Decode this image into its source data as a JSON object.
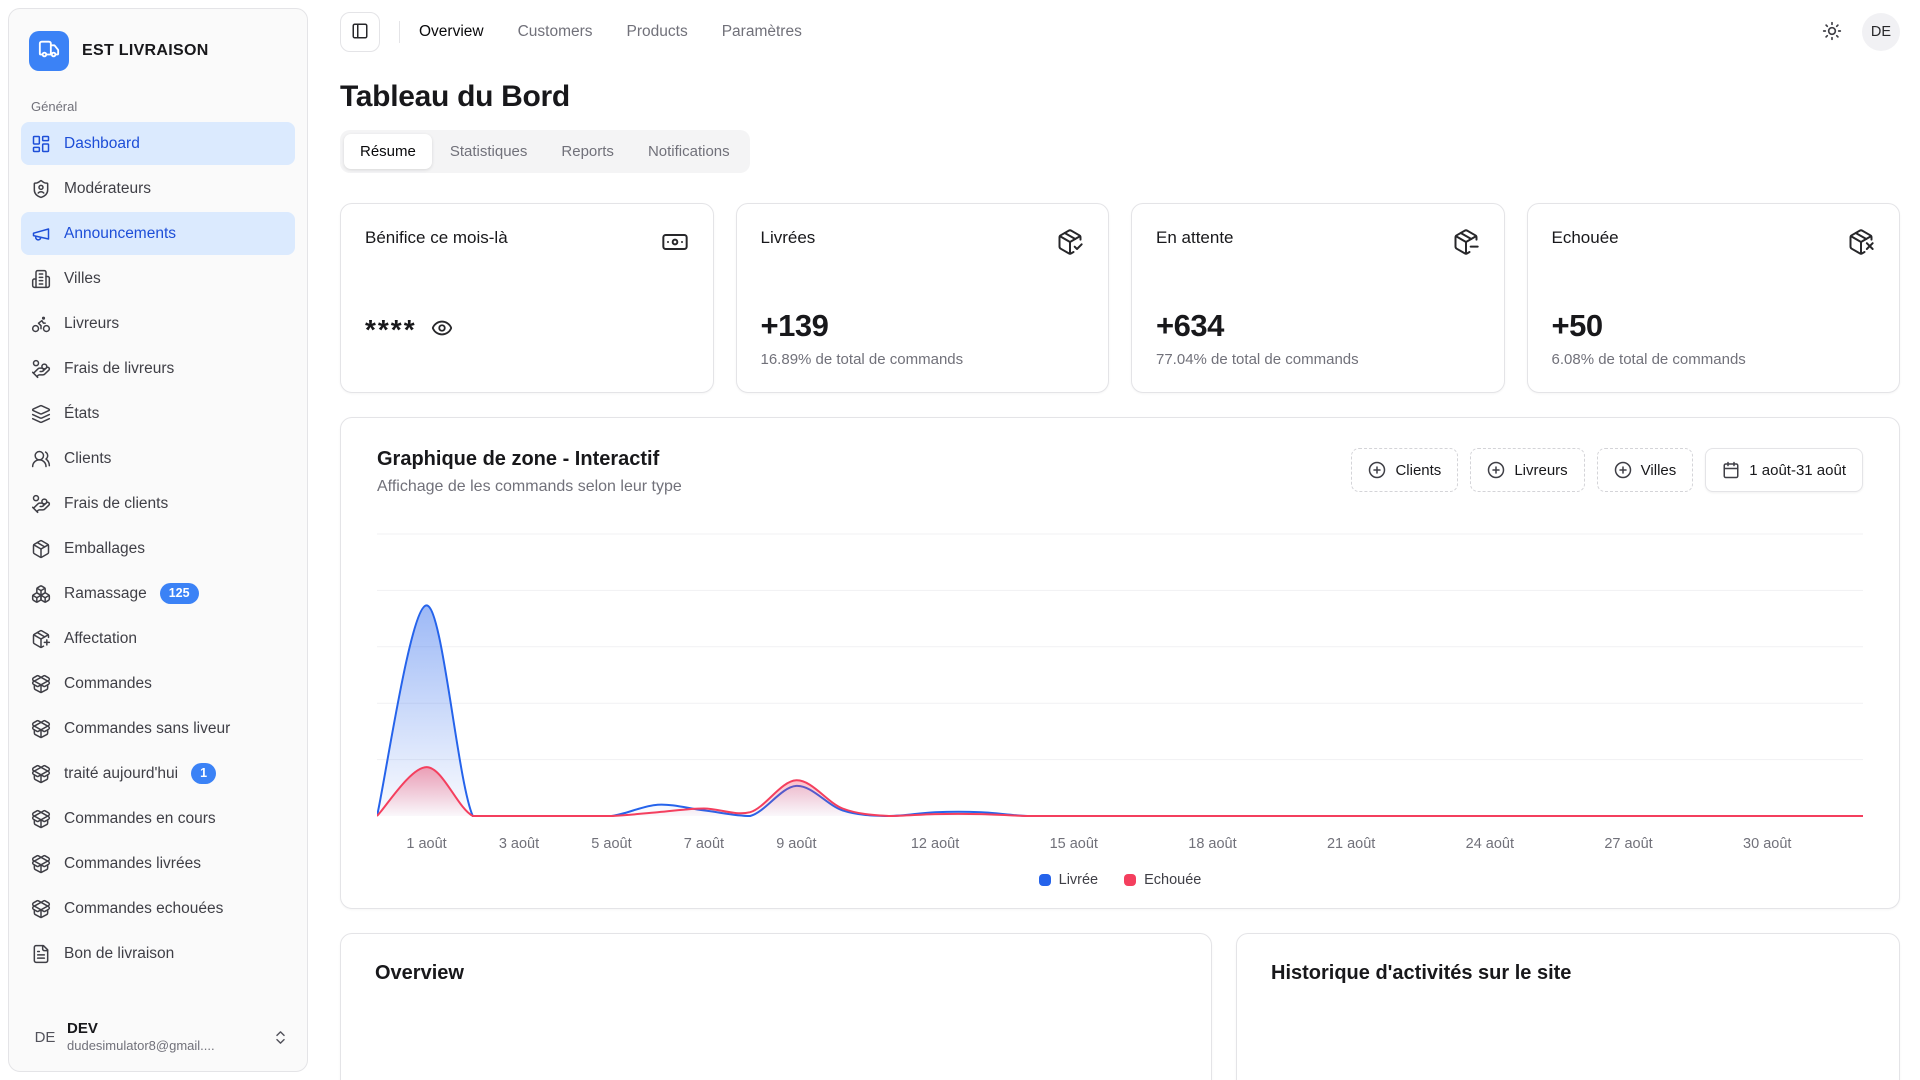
{
  "app": {
    "name": "EST LIVRAISON",
    "logo_icon": "truck"
  },
  "topbar": {
    "nav": [
      {
        "name": "overview",
        "label": "Overview",
        "active": true
      },
      {
        "name": "customers",
        "label": "Customers",
        "active": false
      },
      {
        "name": "products",
        "label": "Products",
        "active": false
      },
      {
        "name": "parametres",
        "label": "Paramètres",
        "active": false
      }
    ],
    "avatar_initials": "DE"
  },
  "page": {
    "title": "Tableau du Bord"
  },
  "tabs": [
    {
      "name": "resume",
      "label": "Résume",
      "active": true
    },
    {
      "name": "statistiques",
      "label": "Statistiques",
      "active": false
    },
    {
      "name": "reports",
      "label": "Reports",
      "active": false
    },
    {
      "name": "notifications",
      "label": "Notifications",
      "active": false
    }
  ],
  "sidebar": {
    "section_label": "Général",
    "items": [
      {
        "name": "dashboard",
        "label": "Dashboard",
        "icon": "layout-dashboard",
        "active": true,
        "badge": null
      },
      {
        "name": "moderateurs",
        "label": "Modérateurs",
        "icon": "shield-user",
        "active": false,
        "badge": null
      },
      {
        "name": "announcements",
        "label": "Announcements",
        "icon": "megaphone",
        "active": true,
        "badge": null
      },
      {
        "name": "villes",
        "label": "Villes",
        "icon": "building",
        "active": false,
        "badge": null
      },
      {
        "name": "livreurs",
        "label": "Livreurs",
        "icon": "bike",
        "active": false,
        "badge": null
      },
      {
        "name": "frais-de-livreurs",
        "label": "Frais de livreurs",
        "icon": "hand-coins",
        "active": false,
        "badge": null
      },
      {
        "name": "etats",
        "label": "États",
        "icon": "layers",
        "active": false,
        "badge": null
      },
      {
        "name": "clients",
        "label": "Clients",
        "icon": "users",
        "active": false,
        "badge": null
      },
      {
        "name": "frais-de-clients",
        "label": "Frais de clients",
        "icon": "hand-coins",
        "active": false,
        "badge": null
      },
      {
        "name": "emballages",
        "label": "Emballages",
        "icon": "package",
        "active": false,
        "badge": null
      },
      {
        "name": "ramassage",
        "label": "Ramassage",
        "icon": "boxes",
        "active": false,
        "badge": "125"
      },
      {
        "name": "affectation",
        "label": "Affectation",
        "icon": "package-plus",
        "active": false,
        "badge": null
      },
      {
        "name": "commandes",
        "label": "Commandes",
        "icon": "package-open",
        "active": false,
        "badge": null
      },
      {
        "name": "commandes-sans-liveur",
        "label": "Commandes sans liveur",
        "icon": "package-open",
        "active": false,
        "badge": null
      },
      {
        "name": "traite-aujourdhui",
        "label": "traité aujourd'hui",
        "icon": "package-open",
        "active": false,
        "badge": "1"
      },
      {
        "name": "commandes-en-cours",
        "label": "Commandes en cours",
        "icon": "package-open",
        "active": false,
        "badge": null
      },
      {
        "name": "commandes-livrees",
        "label": "Commandes livrées",
        "icon": "package-open",
        "active": false,
        "badge": null
      },
      {
        "name": "commandes-echouees",
        "label": "Commandes echouées",
        "icon": "package-open",
        "active": false,
        "badge": null
      },
      {
        "name": "bon-de-livraison",
        "label": "Bon de livraison",
        "icon": "file-text",
        "active": false,
        "badge": null
      }
    ],
    "user": {
      "initials": "DE",
      "name": "DEV",
      "email": "dudesimulator8@gmail...."
    }
  },
  "stats": [
    {
      "name": "benefice",
      "title": "Bénifice ce mois-là",
      "icon": "banknote",
      "masked_value": "****"
    },
    {
      "name": "livrees",
      "title": "Livrées",
      "icon": "package-check",
      "value": "+139",
      "sub": "16.89% de total de commands"
    },
    {
      "name": "en-attente",
      "title": "En attente",
      "icon": "package-minus",
      "value": "+634",
      "sub": "77.04% de total de commands"
    },
    {
      "name": "echouee",
      "title": "Echouée",
      "icon": "package-x",
      "value": "+50",
      "sub": "6.08% de total de commands"
    }
  ],
  "chart": {
    "title": "Graphique de zone - Interactif",
    "subtitle": "Affichage de les commands selon leur type",
    "filter_buttons": [
      {
        "name": "clients",
        "label": "Clients"
      },
      {
        "name": "livreurs",
        "label": "Livreurs"
      },
      {
        "name": "villes",
        "label": "Villes"
      }
    ],
    "date_range": "1 août-31 août",
    "legend": [
      {
        "label": "Livrée",
        "color": "#2563eb"
      },
      {
        "label": "Echouée",
        "color": "#f43f5e"
      }
    ]
  },
  "chart_data": {
    "type": "area",
    "title": "Graphique de zone - Interactif",
    "x_unit": "jour (août)",
    "x": [
      1,
      2,
      3,
      4,
      5,
      6,
      7,
      8,
      9,
      10,
      11,
      12,
      13,
      14,
      15,
      16,
      17,
      18,
      19,
      20,
      21,
      22,
      23,
      24,
      25,
      26,
      27,
      28,
      29,
      30,
      31
    ],
    "series": [
      {
        "name": "Livrée",
        "color": "#2563eb",
        "values": [
          112,
          0,
          0,
          0,
          0,
          6,
          3,
          0,
          16,
          3,
          0,
          2,
          2,
          0,
          0,
          0,
          0,
          0,
          0,
          0,
          0,
          0,
          0,
          0,
          0,
          0,
          0,
          0,
          0,
          0,
          0
        ]
      },
      {
        "name": "Echouée",
        "color": "#f43f5e",
        "values": [
          26,
          0,
          0,
          0,
          0,
          2,
          4,
          2,
          19,
          4,
          0,
          1,
          1,
          0,
          0,
          0,
          0,
          0,
          0,
          0,
          0,
          0,
          0,
          0,
          0,
          0,
          0,
          0,
          0,
          0,
          0
        ]
      }
    ],
    "tick_days": [
      1,
      3,
      5,
      7,
      9,
      12,
      15,
      18,
      21,
      24,
      27,
      30
    ],
    "tick_suffix": " août",
    "ylim": [
      0,
      150
    ],
    "grid": "horizontal",
    "legend_position": "bottom-center"
  },
  "bottom": {
    "left_title": "Overview",
    "right_title": "Historique d'activités sur le site"
  }
}
